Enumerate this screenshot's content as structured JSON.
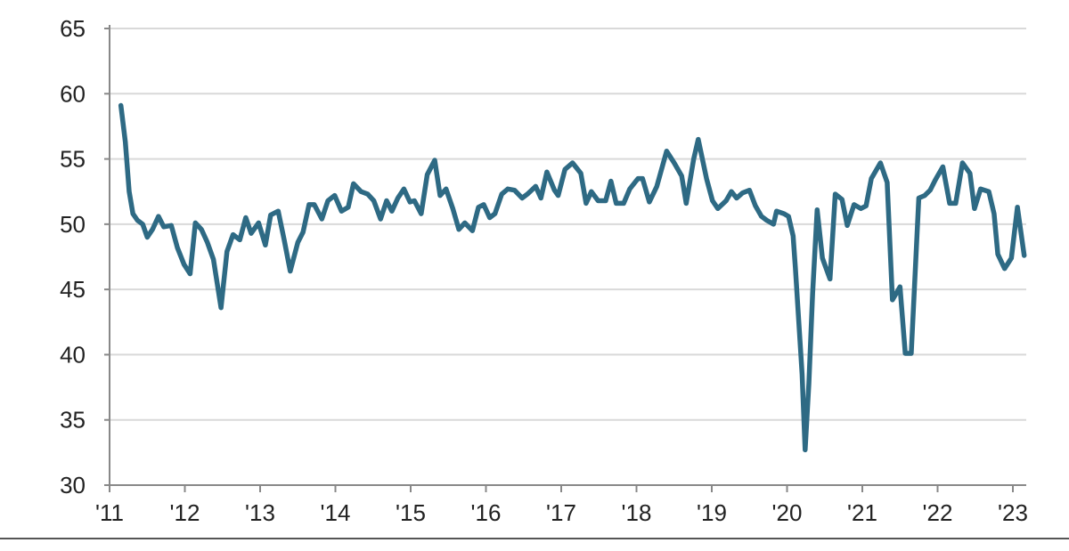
{
  "chart_data": {
    "type": "line",
    "title": "",
    "xlabel": "",
    "ylabel": "",
    "ylim": [
      30,
      65
    ],
    "xlim": [
      2011,
      2023.17
    ],
    "yticks": [
      "30",
      "35",
      "40",
      "45",
      "50",
      "55",
      "60",
      "65"
    ],
    "xticks": [
      "'11",
      "'12",
      "'13",
      "'14",
      "'15",
      "'16",
      "'17",
      "'18",
      "'19",
      "'20",
      "'21",
      "'22",
      "'23"
    ],
    "grid": "horizontal",
    "line_color": "#2e6a84",
    "series": [
      {
        "points": [
          [
            2011.15,
            59.1
          ],
          [
            2011.21,
            56.3
          ],
          [
            2011.26,
            52.5
          ],
          [
            2011.31,
            50.8
          ],
          [
            2011.37,
            50.3
          ],
          [
            2011.44,
            50.0
          ],
          [
            2011.5,
            49.0
          ],
          [
            2011.57,
            49.6
          ],
          [
            2011.65,
            50.6
          ],
          [
            2011.72,
            49.8
          ],
          [
            2011.82,
            49.9
          ],
          [
            2011.9,
            48.2
          ],
          [
            2011.99,
            46.9
          ],
          [
            2012.07,
            46.2
          ],
          [
            2012.14,
            50.1
          ],
          [
            2012.22,
            49.6
          ],
          [
            2012.3,
            48.6
          ],
          [
            2012.38,
            47.3
          ],
          [
            2012.48,
            43.6
          ],
          [
            2012.56,
            47.9
          ],
          [
            2012.64,
            49.2
          ],
          [
            2012.73,
            48.8
          ],
          [
            2012.81,
            50.5
          ],
          [
            2012.88,
            49.3
          ],
          [
            2012.98,
            50.1
          ],
          [
            2013.07,
            48.4
          ],
          [
            2013.14,
            50.7
          ],
          [
            2013.24,
            51.0
          ],
          [
            2013.32,
            48.8
          ],
          [
            2013.4,
            46.4
          ],
          [
            2013.5,
            48.6
          ],
          [
            2013.57,
            49.4
          ],
          [
            2013.65,
            51.5
          ],
          [
            2013.72,
            51.5
          ],
          [
            2013.82,
            50.4
          ],
          [
            2013.9,
            51.8
          ],
          [
            2013.99,
            52.2
          ],
          [
            2014.08,
            51.0
          ],
          [
            2014.17,
            51.3
          ],
          [
            2014.24,
            53.1
          ],
          [
            2014.34,
            52.5
          ],
          [
            2014.43,
            52.3
          ],
          [
            2014.51,
            51.8
          ],
          [
            2014.6,
            50.4
          ],
          [
            2014.68,
            51.8
          ],
          [
            2014.75,
            51.0
          ],
          [
            2014.83,
            52.0
          ],
          [
            2014.91,
            52.7
          ],
          [
            2014.99,
            51.7
          ],
          [
            2015.05,
            51.8
          ],
          [
            2015.14,
            50.8
          ],
          [
            2015.22,
            53.8
          ],
          [
            2015.32,
            54.9
          ],
          [
            2015.39,
            52.2
          ],
          [
            2015.47,
            52.7
          ],
          [
            2015.56,
            51.2
          ],
          [
            2015.64,
            49.6
          ],
          [
            2015.72,
            50.1
          ],
          [
            2015.82,
            49.5
          ],
          [
            2015.9,
            51.3
          ],
          [
            2015.97,
            51.5
          ],
          [
            2016.05,
            50.5
          ],
          [
            2016.12,
            50.8
          ],
          [
            2016.21,
            52.3
          ],
          [
            2016.29,
            52.7
          ],
          [
            2016.38,
            52.6
          ],
          [
            2016.48,
            52.0
          ],
          [
            2016.55,
            52.3
          ],
          [
            2016.66,
            52.9
          ],
          [
            2016.73,
            52.0
          ],
          [
            2016.81,
            54.0
          ],
          [
            2016.91,
            52.6
          ],
          [
            2016.96,
            52.2
          ],
          [
            2017.05,
            54.2
          ],
          [
            2017.15,
            54.7
          ],
          [
            2017.26,
            53.9
          ],
          [
            2017.33,
            51.6
          ],
          [
            2017.4,
            52.5
          ],
          [
            2017.49,
            51.8
          ],
          [
            2017.59,
            51.8
          ],
          [
            2017.66,
            53.3
          ],
          [
            2017.73,
            51.6
          ],
          [
            2017.83,
            51.6
          ],
          [
            2017.91,
            52.7
          ],
          [
            2018.02,
            53.5
          ],
          [
            2018.08,
            53.5
          ],
          [
            2018.17,
            51.7
          ],
          [
            2018.27,
            52.9
          ],
          [
            2018.4,
            55.6
          ],
          [
            2018.5,
            54.7
          ],
          [
            2018.6,
            53.7
          ],
          [
            2018.66,
            51.6
          ],
          [
            2018.76,
            55.0
          ],
          [
            2018.82,
            56.5
          ],
          [
            2018.93,
            53.5
          ],
          [
            2019.01,
            51.8
          ],
          [
            2019.08,
            51.2
          ],
          [
            2019.19,
            51.8
          ],
          [
            2019.26,
            52.5
          ],
          [
            2019.33,
            52.0
          ],
          [
            2019.41,
            52.4
          ],
          [
            2019.5,
            52.6
          ],
          [
            2019.58,
            51.4
          ],
          [
            2019.66,
            50.6
          ],
          [
            2019.73,
            50.3
          ],
          [
            2019.82,
            50.0
          ],
          [
            2019.86,
            51.0
          ],
          [
            2019.96,
            50.8
          ],
          [
            2020.02,
            50.6
          ],
          [
            2020.08,
            49.1
          ],
          [
            2020.11,
            46.7
          ],
          [
            2020.2,
            38.5
          ],
          [
            2020.24,
            32.7
          ],
          [
            2020.29,
            37.8
          ],
          [
            2020.34,
            44.7
          ],
          [
            2020.4,
            51.1
          ],
          [
            2020.47,
            47.4
          ],
          [
            2020.57,
            45.8
          ],
          [
            2020.64,
            52.3
          ],
          [
            2020.73,
            51.9
          ],
          [
            2020.8,
            49.9
          ],
          [
            2020.89,
            51.5
          ],
          [
            2020.98,
            51.2
          ],
          [
            2021.05,
            51.4
          ],
          [
            2021.12,
            53.5
          ],
          [
            2021.24,
            54.7
          ],
          [
            2021.33,
            53.2
          ],
          [
            2021.4,
            44.2
          ],
          [
            2021.5,
            45.2
          ],
          [
            2021.57,
            40.1
          ],
          [
            2021.65,
            40.1
          ],
          [
            2021.75,
            52.0
          ],
          [
            2021.83,
            52.2
          ],
          [
            2021.9,
            52.6
          ],
          [
            2021.97,
            53.4
          ],
          [
            2022.07,
            54.4
          ],
          [
            2022.16,
            51.6
          ],
          [
            2022.24,
            51.6
          ],
          [
            2022.33,
            54.7
          ],
          [
            2022.43,
            53.9
          ],
          [
            2022.49,
            51.2
          ],
          [
            2022.57,
            52.7
          ],
          [
            2022.68,
            52.5
          ],
          [
            2022.75,
            50.8
          ],
          [
            2022.8,
            47.7
          ],
          [
            2022.89,
            46.6
          ],
          [
            2022.98,
            47.4
          ],
          [
            2023.06,
            51.3
          ],
          [
            2023.15,
            47.6
          ]
        ]
      }
    ]
  }
}
